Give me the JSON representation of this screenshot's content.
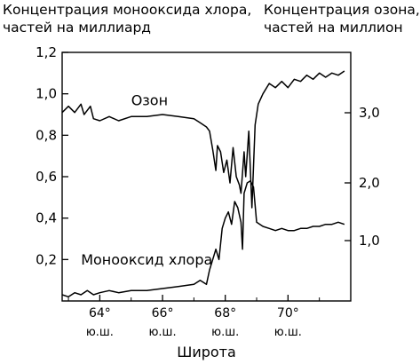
{
  "chart_data": {
    "type": "line",
    "left_axis": {
      "title_lines": [
        "Концентрация монооксида хлора,",
        "частей на миллиард"
      ],
      "ylim": [
        0,
        1.2
      ],
      "ticks": [
        "0,2",
        "0,4",
        "0,6",
        "0,8",
        "1,0",
        "1,2"
      ]
    },
    "right_axis": {
      "title_lines": [
        "Концентрация озона,",
        "частей на миллион"
      ],
      "ticks": [
        "1,0",
        "2,0",
        "3,0"
      ]
    },
    "x_axis": {
      "label": "Широта",
      "xlim": [
        62.8,
        72.0
      ],
      "ticks": [
        {
          "value": 64,
          "degree": "64°",
          "hemisphere": "ю.ш."
        },
        {
          "value": 66,
          "degree": "66°",
          "hemisphere": "ю.ш."
        },
        {
          "value": 68,
          "degree": "68°",
          "hemisphere": "ю.ш."
        },
        {
          "value": 70,
          "degree": "70°",
          "hemisphere": "ю.ш."
        }
      ]
    },
    "series": [
      {
        "name": "Озон",
        "axis": "left",
        "x": [
          62.8,
          63.0,
          63.2,
          63.4,
          63.5,
          63.7,
          63.8,
          64.0,
          64.3,
          64.6,
          65.0,
          65.5,
          66.0,
          66.5,
          67.0,
          67.2,
          67.4,
          67.5,
          67.6,
          67.7,
          67.75,
          67.85,
          67.95,
          68.05,
          68.15,
          68.25,
          68.35,
          68.45,
          68.5,
          68.6,
          68.65,
          68.75,
          68.85,
          68.95,
          69.05,
          69.2,
          69.4,
          69.6,
          69.8,
          70.0,
          70.2,
          70.4,
          70.6,
          70.8,
          71.0,
          71.2,
          71.4,
          71.6,
          71.8
        ],
        "y": [
          0.91,
          0.94,
          0.91,
          0.95,
          0.9,
          0.94,
          0.88,
          0.87,
          0.89,
          0.87,
          0.89,
          0.89,
          0.9,
          0.89,
          0.88,
          0.86,
          0.84,
          0.82,
          0.73,
          0.63,
          0.75,
          0.72,
          0.62,
          0.68,
          0.57,
          0.74,
          0.6,
          0.56,
          0.52,
          0.72,
          0.6,
          0.82,
          0.45,
          0.85,
          0.95,
          1.0,
          1.05,
          1.03,
          1.06,
          1.03,
          1.07,
          1.06,
          1.09,
          1.07,
          1.1,
          1.08,
          1.1,
          1.09,
          1.11
        ]
      },
      {
        "name": "Монооксид хлора",
        "axis": "left",
        "x": [
          62.8,
          63.0,
          63.2,
          63.4,
          63.6,
          63.8,
          64.0,
          64.3,
          64.6,
          65.0,
          65.5,
          66.0,
          66.5,
          67.0,
          67.2,
          67.4,
          67.5,
          67.6,
          67.7,
          67.8,
          67.9,
          68.0,
          68.1,
          68.2,
          68.3,
          68.4,
          68.5,
          68.55,
          68.6,
          68.7,
          68.8,
          68.9,
          69.0,
          69.2,
          69.4,
          69.6,
          69.8,
          70.0,
          70.2,
          70.4,
          70.6,
          70.8,
          71.0,
          71.2,
          71.4,
          71.6,
          71.8
        ],
        "y": [
          0.03,
          0.02,
          0.04,
          0.03,
          0.05,
          0.03,
          0.04,
          0.05,
          0.04,
          0.05,
          0.05,
          0.06,
          0.07,
          0.08,
          0.1,
          0.08,
          0.15,
          0.2,
          0.25,
          0.2,
          0.35,
          0.4,
          0.43,
          0.37,
          0.48,
          0.45,
          0.38,
          0.25,
          0.52,
          0.57,
          0.58,
          0.55,
          0.38,
          0.36,
          0.35,
          0.34,
          0.35,
          0.34,
          0.34,
          0.35,
          0.35,
          0.36,
          0.36,
          0.37,
          0.37,
          0.38,
          0.37
        ]
      }
    ],
    "annotations": [
      {
        "text": "Озон",
        "x": 65.0,
        "y": 0.945
      },
      {
        "text": "Монооксид хлора",
        "x": 63.4,
        "y": 0.175
      }
    ]
  }
}
